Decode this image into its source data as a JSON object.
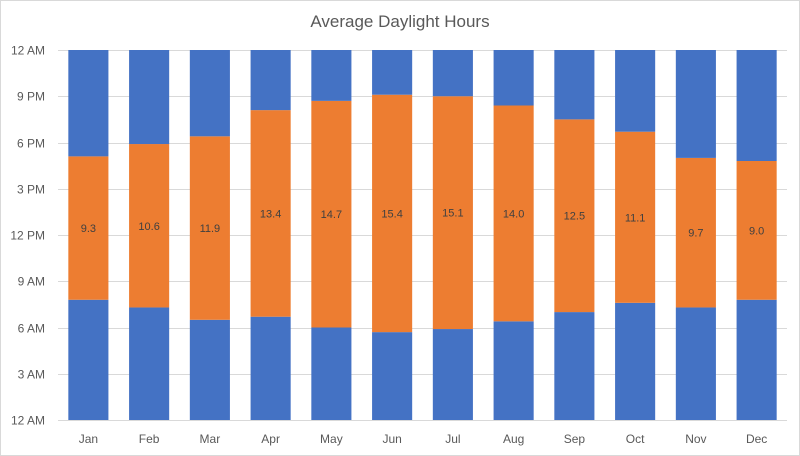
{
  "chart_data": {
    "type": "bar",
    "stacked": true,
    "title": "Average Daylight Hours",
    "xlabel": "",
    "ylabel": "",
    "categories": [
      "Jan",
      "Feb",
      "Mar",
      "Apr",
      "May",
      "Jun",
      "Jul",
      "Aug",
      "Sep",
      "Oct",
      "Nov",
      "Dec"
    ],
    "y_unit": "hours since midnight",
    "ylim": [
      0,
      24
    ],
    "y_ticks": [
      0,
      3,
      6,
      9,
      12,
      15,
      18,
      21,
      24
    ],
    "y_tick_labels": [
      "12 AM",
      "3 AM",
      "6 AM",
      "9 AM",
      "12 PM",
      "3 PM",
      "6 PM",
      "9 PM",
      "12 AM"
    ],
    "grid": true,
    "legend": "none",
    "series": [
      {
        "color": "#4472c4",
        "values": [
          7.8,
          7.3,
          6.5,
          6.7,
          6.0,
          5.7,
          5.9,
          6.4,
          7.0,
          7.6,
          7.3,
          7.8
        ]
      },
      {
        "color": "#ed7d31",
        "values": [
          9.3,
          10.6,
          11.9,
          13.4,
          14.7,
          15.4,
          15.1,
          14.0,
          12.5,
          11.1,
          9.7,
          9.0
        ],
        "data_labels": [
          "9.3",
          "10.6",
          "11.9",
          "13.4",
          "14.7",
          "15.4",
          "15.1",
          "14.0",
          "12.5",
          "11.1",
          "9.7",
          "9.0"
        ]
      },
      {
        "color": "#4472c4",
        "values": [
          6.9,
          6.1,
          5.6,
          3.9,
          3.3,
          2.9,
          3.0,
          3.6,
          4.5,
          5.3,
          7.0,
          7.2
        ]
      }
    ]
  }
}
